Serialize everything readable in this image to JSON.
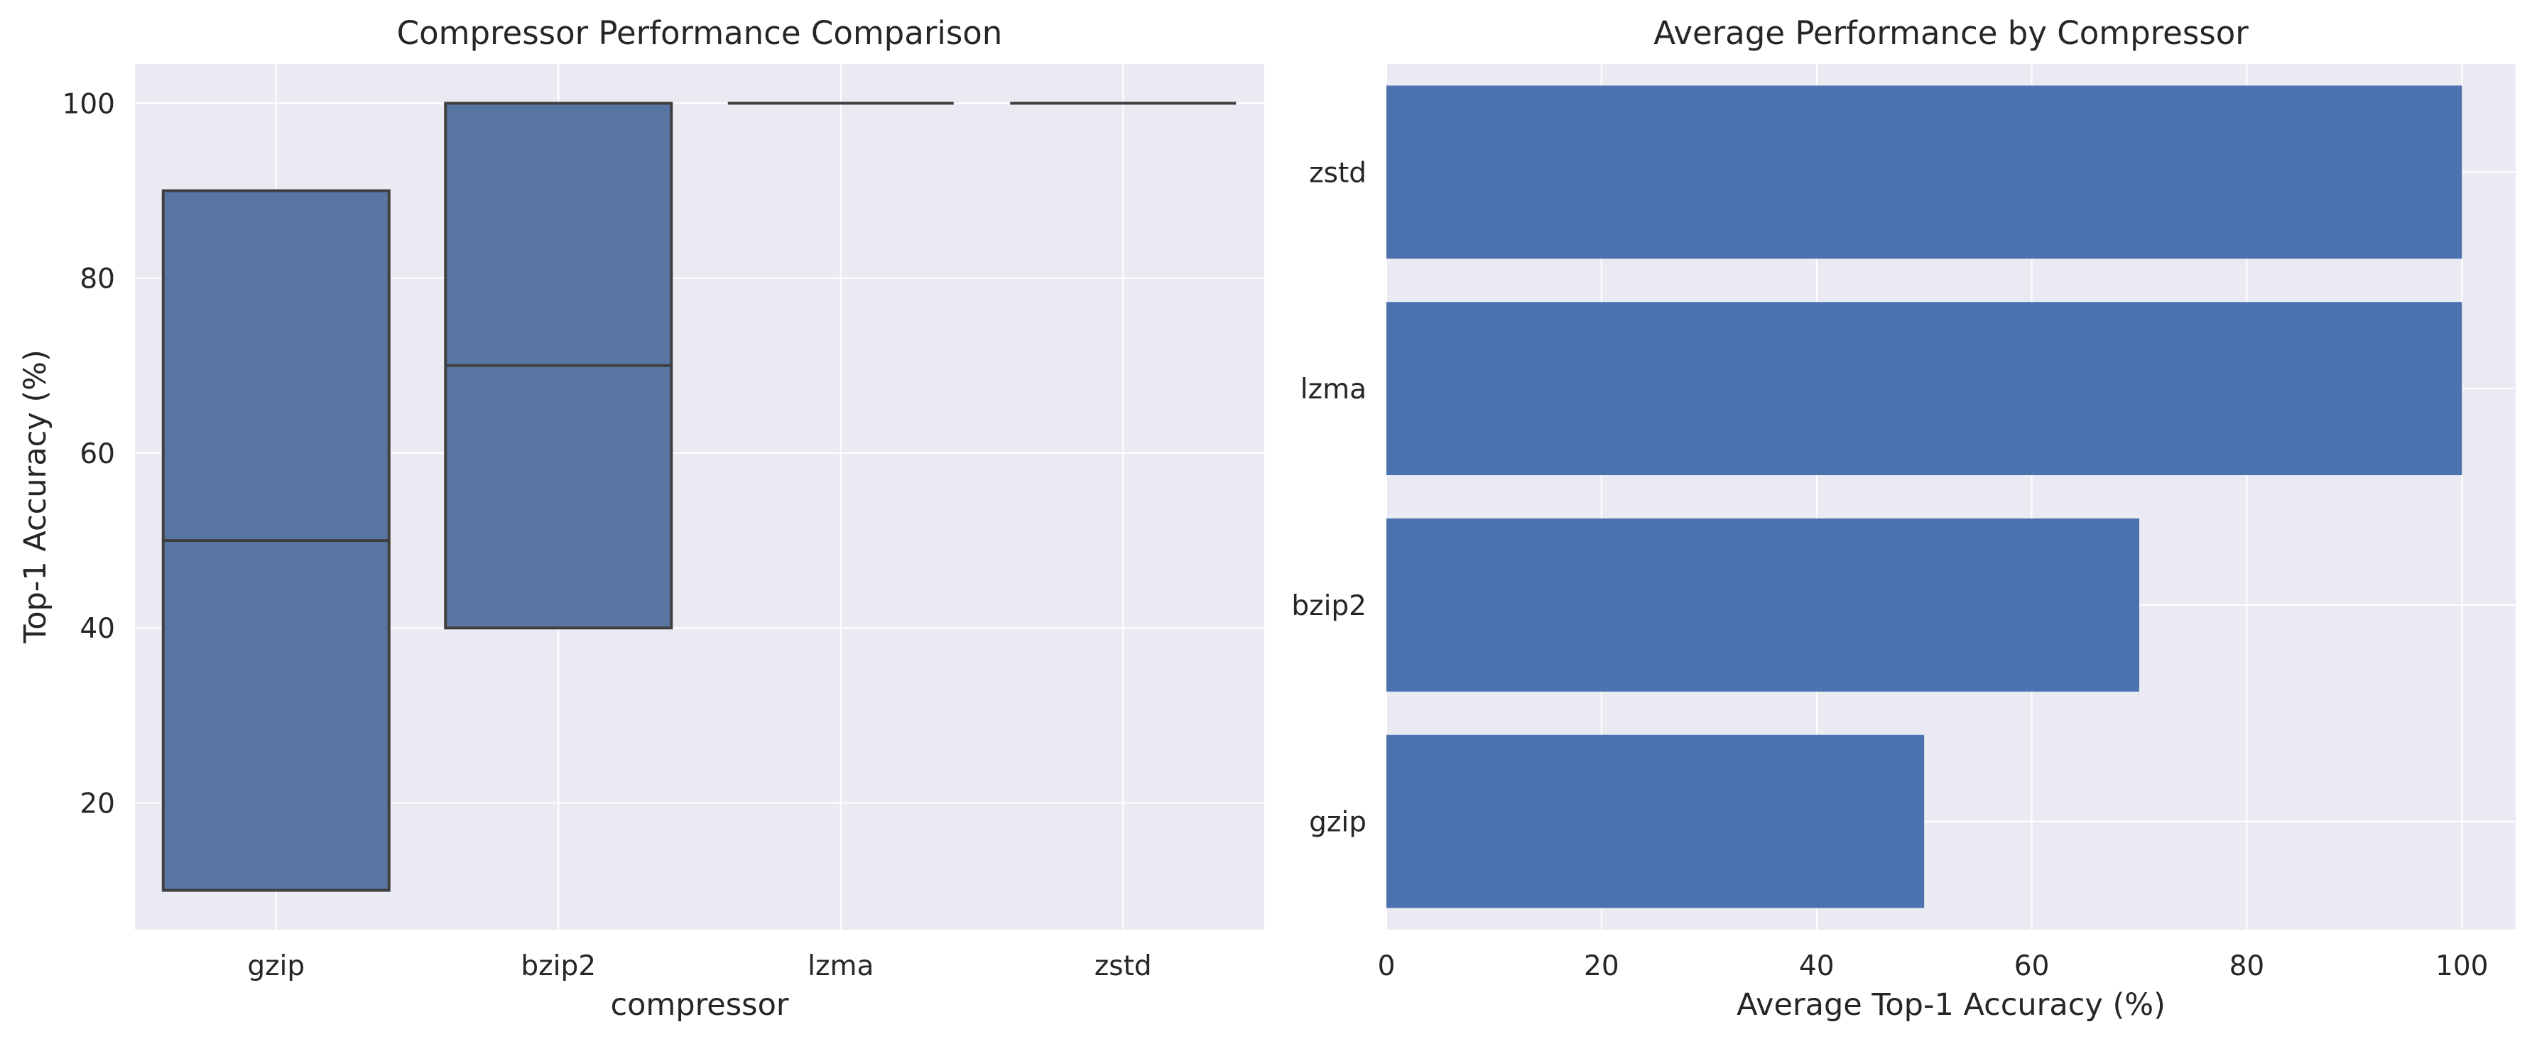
{
  "chart_data": [
    {
      "type": "box",
      "title": "Compressor Performance Comparison",
      "xlabel": "compressor",
      "ylabel": "Top-1 Accuracy (%)",
      "categories": [
        "gzip",
        "bzip2",
        "lzma",
        "zstd"
      ],
      "boxes": [
        {
          "category": "gzip",
          "whisker_low": 10,
          "q1": 10,
          "median": 50,
          "q3": 90,
          "whisker_high": 90
        },
        {
          "category": "bzip2",
          "whisker_low": 40,
          "q1": 40,
          "median": 70,
          "q3": 100,
          "whisker_high": 100
        },
        {
          "category": "lzma",
          "whisker_low": 100,
          "q1": 100,
          "median": 100,
          "q3": 100,
          "whisker_high": 100
        },
        {
          "category": "zstd",
          "whisker_low": 100,
          "q1": 100,
          "median": 100,
          "q3": 100,
          "whisker_high": 100
        }
      ],
      "ylim": [
        5.5,
        104.5
      ],
      "yticks": [
        20,
        40,
        60,
        80,
        100
      ],
      "grid": true,
      "color": "#5975a4"
    },
    {
      "type": "bar",
      "orientation": "horizontal",
      "title": "Average Performance by Compressor",
      "xlabel": "Average Top-1 Accuracy (%)",
      "ylabel": "",
      "categories": [
        "gzip",
        "bzip2",
        "lzma",
        "zstd"
      ],
      "values": [
        50,
        70,
        100,
        100
      ],
      "xlim": [
        0,
        105
      ],
      "xticks": [
        0,
        20,
        40,
        60,
        80,
        100
      ],
      "grid": true,
      "color": "#4c72b0"
    }
  ],
  "style": {
    "axes_background": "#eaeaf2",
    "grid_color": "#ffffff",
    "box_edge_color": "#3f3f3f"
  }
}
